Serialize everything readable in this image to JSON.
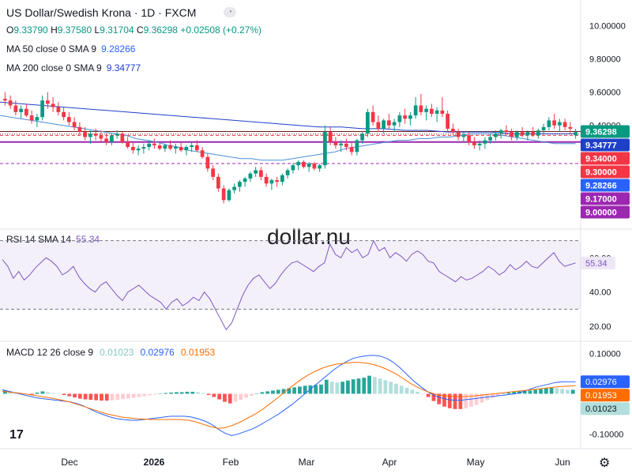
{
  "header": {
    "title": "US Dollar/Swedish Krona · 1D · FXCM",
    "open_label": "O",
    "open": "9.33790",
    "high_label": "H",
    "high": "9.37580",
    "low_label": "L",
    "low": "9.31704",
    "close_label": "C",
    "close": "9.36298",
    "change": "+0.02508 (+0.27%)",
    "ma50_label": "MA 50 close 0 SMA 9",
    "ma50_value": "9.28266",
    "ma200_label": "MA 200 close 0 SMA 9",
    "ma200_value": "9.34777"
  },
  "watermark": "dollar.nu",
  "colors": {
    "up": "#089981",
    "down": "#f23645",
    "ma50": "#2962ff",
    "ma200": "#1e40c8",
    "rsi": "#7e57c2",
    "macd": "#2962ff",
    "signal": "#ff6d00"
  },
  "chart_data": [
    {
      "type": "candlestick",
      "x_labels": [
        "Dec",
        "2026",
        "Feb",
        "Mar",
        "Apr",
        "May",
        "Jun"
      ],
      "y_ticks": [
        "10.00000",
        "9.80000",
        "9.60000",
        "9.40000"
      ],
      "ylim": [
        8.88,
        10.06
      ],
      "candles": [
        [
          9.56,
          9.6,
          9.52,
          9.55
        ],
        [
          9.55,
          9.58,
          9.5,
          9.52
        ],
        [
          9.52,
          9.55,
          9.46,
          9.48
        ],
        [
          9.48,
          9.52,
          9.44,
          9.5
        ],
        [
          9.5,
          9.53,
          9.45,
          9.46
        ],
        [
          9.46,
          9.49,
          9.41,
          9.43
        ],
        [
          9.43,
          9.47,
          9.39,
          9.45
        ],
        [
          9.45,
          9.58,
          9.43,
          9.55
        ],
        [
          9.55,
          9.6,
          9.5,
          9.53
        ],
        [
          9.53,
          9.57,
          9.48,
          9.51
        ],
        [
          9.51,
          9.54,
          9.46,
          9.48
        ],
        [
          9.48,
          9.51,
          9.43,
          9.45
        ],
        [
          9.45,
          9.48,
          9.4,
          9.42
        ],
        [
          9.42,
          9.45,
          9.37,
          9.39
        ],
        [
          9.39,
          9.42,
          9.34,
          9.36
        ],
        [
          9.36,
          9.39,
          9.31,
          9.33
        ],
        [
          9.33,
          9.37,
          9.29,
          9.35
        ],
        [
          9.35,
          9.38,
          9.31,
          9.34
        ],
        [
          9.34,
          9.37,
          9.3,
          9.32
        ],
        [
          9.32,
          9.35,
          9.28,
          9.3
        ],
        [
          9.3,
          9.35,
          9.28,
          9.34
        ],
        [
          9.34,
          9.37,
          9.32,
          9.35
        ],
        [
          9.35,
          9.36,
          9.29,
          9.3
        ],
        [
          9.3,
          9.33,
          9.26,
          9.27
        ],
        [
          9.27,
          9.3,
          9.23,
          9.25
        ],
        [
          9.25,
          9.28,
          9.22,
          9.26
        ],
        [
          9.26,
          9.29,
          9.23,
          9.27
        ],
        [
          9.27,
          9.31,
          9.25,
          9.29
        ],
        [
          9.29,
          9.32,
          9.26,
          9.28
        ],
        [
          9.28,
          9.3,
          9.25,
          9.26
        ],
        [
          9.26,
          9.29,
          9.24,
          9.28
        ],
        [
          9.28,
          9.31,
          9.25,
          9.26
        ],
        [
          9.26,
          9.29,
          9.23,
          9.27
        ],
        [
          9.27,
          9.3,
          9.24,
          9.25
        ],
        [
          9.25,
          9.28,
          9.22,
          9.27
        ],
        [
          9.27,
          9.3,
          9.24,
          9.28
        ],
        [
          9.28,
          9.31,
          9.24,
          9.25
        ],
        [
          9.25,
          9.27,
          9.2,
          9.21
        ],
        [
          9.21,
          9.23,
          9.12,
          9.14
        ],
        [
          9.14,
          9.16,
          9.07,
          9.09
        ],
        [
          9.09,
          9.11,
          9.0,
          9.02
        ],
        [
          9.02,
          9.04,
          8.93,
          8.95
        ],
        [
          8.95,
          9.02,
          8.94,
          9.01
        ],
        [
          9.01,
          9.05,
          8.99,
          9.03
        ],
        [
          9.03,
          9.07,
          9.0,
          9.06
        ],
        [
          9.06,
          9.09,
          9.03,
          9.08
        ],
        [
          9.08,
          9.12,
          9.06,
          9.11
        ],
        [
          9.11,
          9.15,
          9.09,
          9.13
        ],
        [
          9.13,
          9.15,
          9.07,
          9.09
        ],
        [
          9.09,
          9.11,
          9.03,
          9.05
        ],
        [
          9.05,
          9.08,
          9.01,
          9.07
        ],
        [
          9.07,
          9.09,
          9.03,
          9.06
        ],
        [
          9.06,
          9.11,
          9.04,
          9.1
        ],
        [
          9.1,
          9.14,
          9.08,
          9.13
        ],
        [
          9.13,
          9.17,
          9.11,
          9.16
        ],
        [
          9.16,
          9.19,
          9.13,
          9.18
        ],
        [
          9.18,
          9.19,
          9.14,
          9.15
        ],
        [
          9.15,
          9.18,
          9.12,
          9.17
        ],
        [
          9.17,
          9.18,
          9.13,
          9.14
        ],
        [
          9.14,
          9.17,
          9.12,
          9.16
        ],
        [
          9.16,
          9.4,
          9.14,
          9.36
        ],
        [
          9.36,
          9.39,
          9.28,
          9.3
        ],
        [
          9.3,
          9.33,
          9.26,
          9.28
        ],
        [
          9.28,
          9.31,
          9.24,
          9.29
        ],
        [
          9.29,
          9.32,
          9.25,
          9.27
        ],
        [
          9.27,
          9.3,
          9.22,
          9.24
        ],
        [
          9.24,
          9.32,
          9.22,
          9.31
        ],
        [
          9.31,
          9.36,
          9.29,
          9.35
        ],
        [
          9.35,
          9.5,
          9.33,
          9.48
        ],
        [
          9.48,
          9.52,
          9.4,
          9.42
        ],
        [
          9.42,
          9.46,
          9.36,
          9.38
        ],
        [
          9.38,
          9.44,
          9.35,
          9.43
        ],
        [
          9.43,
          9.47,
          9.38,
          9.4
        ],
        [
          9.4,
          9.44,
          9.36,
          9.42
        ],
        [
          9.42,
          9.48,
          9.39,
          9.46
        ],
        [
          9.46,
          9.5,
          9.41,
          9.44
        ],
        [
          9.44,
          9.48,
          9.4,
          9.46
        ],
        [
          9.46,
          9.57,
          9.44,
          9.52
        ],
        [
          9.52,
          9.59,
          9.46,
          9.48
        ],
        [
          9.48,
          9.52,
          9.43,
          9.5
        ],
        [
          9.5,
          9.53,
          9.45,
          9.47
        ],
        [
          9.47,
          9.51,
          9.42,
          9.49
        ],
        [
          9.49,
          9.57,
          9.45,
          9.47
        ],
        [
          9.47,
          9.49,
          9.36,
          9.38
        ],
        [
          9.38,
          9.41,
          9.34,
          9.36
        ],
        [
          9.36,
          9.38,
          9.31,
          9.33
        ],
        [
          9.33,
          9.36,
          9.3,
          9.34
        ],
        [
          9.34,
          9.36,
          9.28,
          9.3
        ],
        [
          9.3,
          9.33,
          9.26,
          9.28
        ],
        [
          9.28,
          9.31,
          9.25,
          9.29
        ],
        [
          9.29,
          9.33,
          9.26,
          9.31
        ],
        [
          9.31,
          9.35,
          9.29,
          9.33
        ],
        [
          9.33,
          9.37,
          9.31,
          9.35
        ],
        [
          9.35,
          9.38,
          9.32,
          9.37
        ],
        [
          9.37,
          9.4,
          9.34,
          9.36
        ],
        [
          9.36,
          9.38,
          9.31,
          9.33
        ],
        [
          9.33,
          9.37,
          9.31,
          9.36
        ],
        [
          9.36,
          9.39,
          9.33,
          9.34
        ],
        [
          9.34,
          9.37,
          9.31,
          9.36
        ],
        [
          9.36,
          9.39,
          9.33,
          9.34
        ],
        [
          9.34,
          9.38,
          9.32,
          9.37
        ],
        [
          9.37,
          9.41,
          9.35,
          9.39
        ],
        [
          9.39,
          9.45,
          9.37,
          9.43
        ],
        [
          9.43,
          9.47,
          9.38,
          9.4
        ],
        [
          9.4,
          9.44,
          9.36,
          9.42
        ],
        [
          9.42,
          9.44,
          9.37,
          9.39
        ],
        [
          9.39,
          9.42,
          9.35,
          9.38
        ],
        [
          9.34,
          9.38,
          9.32,
          9.36
        ]
      ],
      "ma50": [
        9.46,
        9.45,
        9.44,
        9.43,
        9.42,
        9.41,
        9.4,
        9.39,
        9.38,
        9.37,
        9.36,
        9.35,
        9.34,
        9.32,
        9.31,
        9.3,
        9.28,
        9.27,
        9.25,
        9.24,
        9.23,
        9.22,
        9.21,
        9.2,
        9.2,
        9.19,
        9.19,
        9.19,
        9.2,
        9.21,
        9.22,
        9.23,
        9.24,
        9.26,
        9.27,
        9.28,
        9.29,
        9.3,
        9.31,
        9.31,
        9.32,
        9.32,
        9.33,
        9.33,
        9.34,
        9.35,
        9.35,
        9.35,
        9.34,
        9.33,
        9.32,
        9.31,
        9.3,
        9.29,
        9.29,
        9.29
      ],
      "ma200": [
        9.54,
        9.53,
        9.52,
        9.51,
        9.5,
        9.49,
        9.48,
        9.47,
        9.46,
        9.45,
        9.44,
        9.43,
        9.42,
        9.41,
        9.4,
        9.39,
        9.39,
        9.38,
        9.38,
        9.37,
        9.37,
        9.36,
        9.36,
        9.36,
        9.35,
        9.35,
        9.35,
        9.35
      ],
      "price_levels": [
        {
          "label": "9.36298",
          "bg": "#089981",
          "fg": "#ffffff",
          "line": "#6d1b1b",
          "style": "solid",
          "v": 9.36298
        },
        {
          "label": "9.34777",
          "bg": "#1e40c8",
          "fg": "#ffffff",
          "line": "",
          "style": "",
          "v": 9.34777
        },
        {
          "label": "9.34000",
          "bg": "#f23645",
          "fg": "#ffffff",
          "line": "#f23645",
          "style": "dash",
          "v": 9.34
        },
        {
          "label": "9.30000",
          "bg": "#f23645",
          "fg": "#ffffff",
          "line": "#9c27b0",
          "style": "thick",
          "v": 9.3
        },
        {
          "label": "9.28266",
          "bg": "#2962ff",
          "fg": "#ffffff",
          "line": "",
          "style": "",
          "v": 9.28266
        },
        {
          "label": "9.17000",
          "bg": "#9c27b0",
          "fg": "#ffffff",
          "line": "#9c27b0",
          "style": "dash",
          "v": 9.17
        },
        {
          "label": "9.00000",
          "bg": "#9c27b0",
          "fg": "#ffffff",
          "line": "",
          "style": "",
          "v": 9.0
        }
      ]
    },
    {
      "type": "line",
      "name": "RSI 14 SMA 14",
      "label": "RSI 14 SMA 14",
      "value_label": "55.34",
      "y_ticks": [
        "60.00",
        "40.00",
        "20.00"
      ],
      "bands": [
        70,
        30
      ],
      "ylim": [
        14,
        74
      ],
      "values": [
        59,
        55,
        48,
        52,
        47,
        50,
        54,
        57,
        60,
        58,
        55,
        50,
        52,
        55,
        49,
        45,
        42,
        40,
        44,
        46,
        42,
        38,
        35,
        40,
        42,
        44,
        41,
        38,
        36,
        34,
        30,
        34,
        36,
        32,
        34,
        37,
        35,
        40,
        36,
        30,
        24,
        18,
        22,
        30,
        38,
        44,
        48,
        50,
        46,
        42,
        45,
        50,
        54,
        57,
        58,
        56,
        54,
        52,
        55,
        57,
        68,
        62,
        60,
        66,
        63,
        65,
        60,
        62,
        70,
        64,
        66,
        60,
        63,
        61,
        58,
        62,
        64,
        62,
        58,
        57,
        52,
        50,
        48,
        46,
        49,
        47,
        48,
        50,
        52,
        55,
        53,
        50,
        52,
        56,
        53,
        55,
        58,
        55,
        54,
        57,
        60,
        63,
        58,
        55,
        56,
        57
      ]
    },
    {
      "type": "bar_line",
      "name": "MACD 12 26 close 9",
      "label": "MACD 12 26 close 9",
      "hist_label": "0.01023",
      "macd_label": "0.02976",
      "signal_label": "0.01953",
      "y_ticks": [
        "0.10000",
        "-0.10000"
      ],
      "ylim": [
        -0.125,
        0.115
      ],
      "hist": [
        0.008,
        0.006,
        0.004,
        0.002,
        0.0,
        -0.002,
        0.003,
        0.006,
        0.004,
        0.002,
        0.0,
        -0.003,
        -0.006,
        -0.009,
        -0.012,
        -0.014,
        -0.015,
        -0.016,
        -0.017,
        -0.017,
        -0.016,
        -0.015,
        -0.013,
        -0.012,
        -0.01,
        -0.008,
        -0.006,
        -0.004,
        -0.002,
        0.0,
        0.002,
        0.003,
        0.004,
        0.004,
        0.005,
        0.005,
        0.004,
        0.002,
        -0.003,
        -0.008,
        -0.014,
        -0.02,
        -0.024,
        -0.02,
        -0.015,
        -0.01,
        -0.005,
        0.0,
        0.004,
        0.006,
        0.008,
        0.01,
        0.012,
        0.014,
        0.016,
        0.018,
        0.02,
        0.021,
        0.022,
        0.023,
        0.035,
        0.03,
        0.028,
        0.03,
        0.033,
        0.036,
        0.038,
        0.04,
        0.045,
        0.042,
        0.038,
        0.034,
        0.03,
        0.025,
        0.02,
        0.015,
        0.01,
        0.005,
        0.0,
        -0.008,
        -0.018,
        -0.026,
        -0.032,
        -0.036,
        -0.038,
        -0.038,
        -0.036,
        -0.032,
        -0.028,
        -0.022,
        -0.016,
        -0.01,
        -0.005,
        0.0,
        0.003,
        0.005,
        0.006,
        0.007,
        0.008,
        0.01,
        0.012,
        0.014,
        0.015,
        0.014,
        0.012,
        0.01,
        0.01
      ],
      "macd": [
        0.01,
        0.006,
        0.002,
        -0.002,
        -0.006,
        -0.01,
        -0.012,
        -0.014,
        -0.016,
        -0.018,
        -0.02,
        -0.024,
        -0.03,
        -0.038,
        -0.046,
        -0.052,
        -0.058,
        -0.062,
        -0.064,
        -0.066,
        -0.066,
        -0.064,
        -0.062,
        -0.06,
        -0.058,
        -0.056,
        -0.056,
        -0.056,
        -0.058,
        -0.062,
        -0.068,
        -0.076,
        -0.088,
        -0.098,
        -0.104,
        -0.1,
        -0.094,
        -0.088,
        -0.08,
        -0.07,
        -0.06,
        -0.05,
        -0.038,
        -0.026,
        -0.012,
        0.002,
        0.016,
        0.03,
        0.044,
        0.058,
        0.07,
        0.08,
        0.088,
        0.092,
        0.095,
        0.096,
        0.094,
        0.088,
        0.078,
        0.064,
        0.048,
        0.032,
        0.018,
        0.006,
        -0.004,
        -0.01,
        -0.014,
        -0.016,
        -0.016,
        -0.014,
        -0.012,
        -0.01,
        -0.008,
        -0.006,
        -0.004,
        -0.002,
        0.0,
        0.004,
        0.01,
        0.016,
        0.02,
        0.024,
        0.028,
        0.03,
        0.03,
        0.03
      ],
      "signal": [
        0.006,
        0.004,
        0.002,
        0.0,
        -0.003,
        -0.006,
        -0.009,
        -0.012,
        -0.016,
        -0.02,
        -0.026,
        -0.032,
        -0.038,
        -0.044,
        -0.05,
        -0.054,
        -0.058,
        -0.06,
        -0.062,
        -0.063,
        -0.064,
        -0.064,
        -0.064,
        -0.064,
        -0.064,
        -0.066,
        -0.07,
        -0.076,
        -0.082,
        -0.086,
        -0.084,
        -0.078,
        -0.07,
        -0.06,
        -0.05,
        -0.038,
        -0.024,
        -0.01,
        0.006,
        0.02,
        0.034,
        0.046,
        0.056,
        0.064,
        0.07,
        0.074,
        0.076,
        0.078,
        0.078,
        0.076,
        0.072,
        0.066,
        0.058,
        0.048,
        0.036,
        0.024,
        0.014,
        0.006,
        0.0,
        -0.004,
        -0.006,
        -0.007,
        -0.007,
        -0.006,
        -0.004,
        -0.002,
        0.0,
        0.002,
        0.004,
        0.006,
        0.008,
        0.01,
        0.012,
        0.014,
        0.016,
        0.018,
        0.019,
        0.02
      ]
    }
  ]
}
